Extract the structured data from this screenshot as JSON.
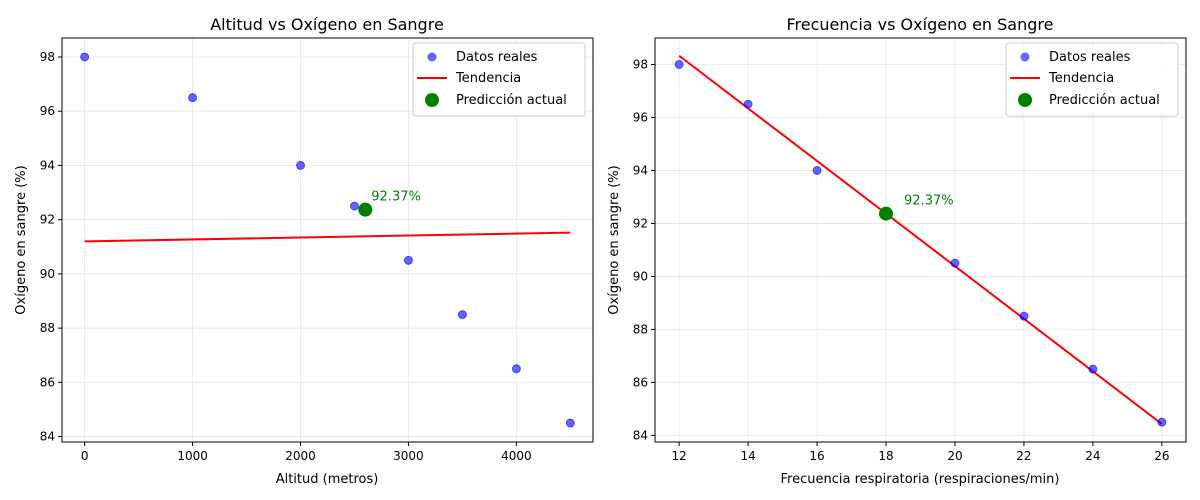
{
  "colors": {
    "points": "#0000ff",
    "trend": "#ff0000",
    "prediction": "#008000",
    "grid": "#e6e6e6",
    "legend_border": "#cccccc"
  },
  "legend": {
    "points_label": "Datos reales",
    "trend_label": "Tendencia",
    "prediction_label": "Predicción actual",
    "placement": "top-right"
  },
  "chart_data": [
    {
      "type": "scatter",
      "title": "Altitud vs Oxígeno en Sangre",
      "xlabel": "Altitud (metros)",
      "ylabel": "Oxígeno en sangre (%)",
      "xlim": [
        -210,
        4710
      ],
      "ylim": [
        83.8,
        98.7
      ],
      "xticks": [
        0,
        1000,
        2000,
        3000,
        4000
      ],
      "yticks": [
        84,
        86,
        88,
        90,
        92,
        94,
        96,
        98
      ],
      "grid": true,
      "series": [
        {
          "name": "Datos reales",
          "x": [
            0,
            1000,
            2000,
            2500,
            3000,
            3500,
            4000,
            4500
          ],
          "y": [
            98.0,
            96.5,
            94.0,
            92.5,
            90.5,
            88.5,
            86.5,
            84.5
          ]
        }
      ],
      "trend": {
        "name": "Tendencia",
        "x": [
          0,
          4500
        ],
        "y": [
          91.2,
          91.52
        ]
      },
      "prediction": {
        "name": "Predicción actual",
        "x": 2600,
        "y": 92.37,
        "label": "92.37%"
      }
    },
    {
      "type": "scatter",
      "title": "Frecuencia vs Oxígeno en Sangre",
      "xlabel": "Frecuencia respiratoria (respiraciones/min)",
      "ylabel": "Oxígeno en sangre (%)",
      "xlim": [
        11.3,
        26.7
      ],
      "ylim": [
        83.75,
        99.0
      ],
      "xticks": [
        12,
        14,
        16,
        18,
        20,
        22,
        24,
        26
      ],
      "yticks": [
        84,
        86,
        88,
        90,
        92,
        94,
        96,
        98
      ],
      "grid": true,
      "series": [
        {
          "name": "Datos reales",
          "x": [
            12,
            14,
            16,
            18,
            20,
            22,
            24,
            26
          ],
          "y": [
            98.0,
            96.5,
            94.0,
            92.4,
            90.5,
            88.5,
            86.5,
            84.5
          ]
        }
      ],
      "trend": {
        "name": "Tendencia",
        "x": [
          12,
          26
        ],
        "y": [
          98.33,
          84.43
        ]
      },
      "prediction": {
        "name": "Predicción actual",
        "x": 18,
        "y": 92.37,
        "label": "92.37%"
      }
    }
  ]
}
